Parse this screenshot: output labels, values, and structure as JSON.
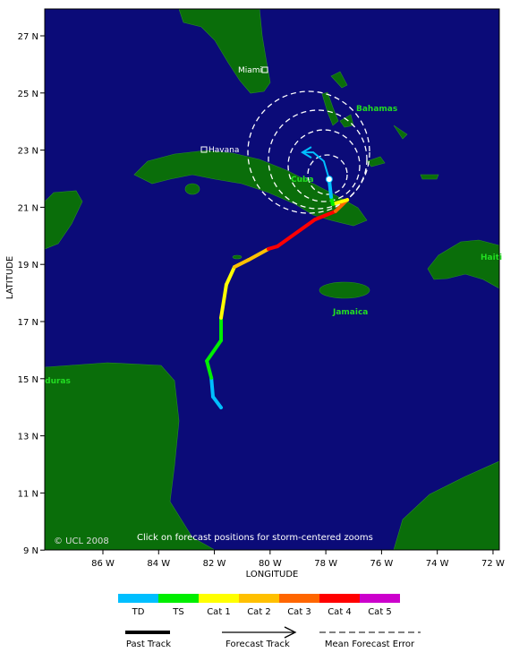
{
  "map": {
    "x_axis": {
      "title": "LONGITUDE",
      "ticks": [
        "86 W",
        "84 W",
        "82 W",
        "80 W",
        "78 W",
        "76 W",
        "74 W",
        "72 W"
      ]
    },
    "y_axis": {
      "title": "LATITUDE",
      "ticks": [
        "27 N",
        "25 N",
        "23 N",
        "21 N",
        "19 N",
        "17 N",
        "15 N",
        "13 N",
        "11 N",
        "9 N"
      ]
    },
    "cities": [
      "Miami",
      "Havana"
    ],
    "places": [
      "Bahamas",
      "Cuba",
      "Jamaica",
      "Haiti",
      "Honduras"
    ],
    "copyright": "© UCL 2008",
    "note": "Click on forecast positions for storm-centered zooms",
    "past_track": [
      {
        "lon": 81.76,
        "lat": 13.99,
        "cat": 0
      },
      {
        "lon": 82.05,
        "lat": 14.37,
        "cat": 0
      },
      {
        "lon": 82.11,
        "lat": 15.03,
        "cat": 0
      },
      {
        "lon": 82.27,
        "lat": 15.62,
        "cat": 1
      },
      {
        "lon": 81.76,
        "lat": 16.34,
        "cat": 1
      },
      {
        "lon": 81.76,
        "lat": 17.13,
        "cat": 1
      },
      {
        "lon": 81.57,
        "lat": 18.29,
        "cat": 2
      },
      {
        "lon": 81.28,
        "lat": 18.91,
        "cat": 2
      },
      {
        "lon": 80.77,
        "lat": 19.16,
        "cat": 3
      },
      {
        "lon": 80.06,
        "lat": 19.54,
        "cat": 3
      },
      {
        "lon": 79.74,
        "lat": 19.63,
        "cat": 5
      },
      {
        "lon": 78.39,
        "lat": 20.57,
        "cat": 5
      },
      {
        "lon": 77.65,
        "lat": 20.86,
        "cat": 5
      },
      {
        "lon": 77.23,
        "lat": 21.26,
        "cat": 4
      },
      {
        "lon": 77.75,
        "lat": 21.11,
        "cat": 2
      },
      {
        "lon": 77.81,
        "lat": 21.36,
        "cat": 1
      },
      {
        "lon": 77.88,
        "lat": 21.98,
        "cat": 0
      }
    ],
    "forecast_track": [
      {
        "lon": 77.88,
        "lat": 21.98
      },
      {
        "lon": 78.07,
        "lat": 22.61
      },
      {
        "lon": 78.45,
        "lat": 22.92
      },
      {
        "lon": 78.84,
        "lat": 22.92
      }
    ]
  },
  "legend": {
    "categories": [
      {
        "label": "TD",
        "color": "#00bfff"
      },
      {
        "label": "TS",
        "color": "#00ee00"
      },
      {
        "label": "Cat 1",
        "color": "#ffff00"
      },
      {
        "label": "Cat 2",
        "color": "#ffc000"
      },
      {
        "label": "Cat 3",
        "color": "#ff6600"
      },
      {
        "label": "Cat 4",
        "color": "#ff0000"
      },
      {
        "label": "Cat 5",
        "color": "#cc00cc"
      }
    ],
    "line_types": [
      "Past Track",
      "Forecast Track",
      "Mean Forecast Error"
    ]
  }
}
